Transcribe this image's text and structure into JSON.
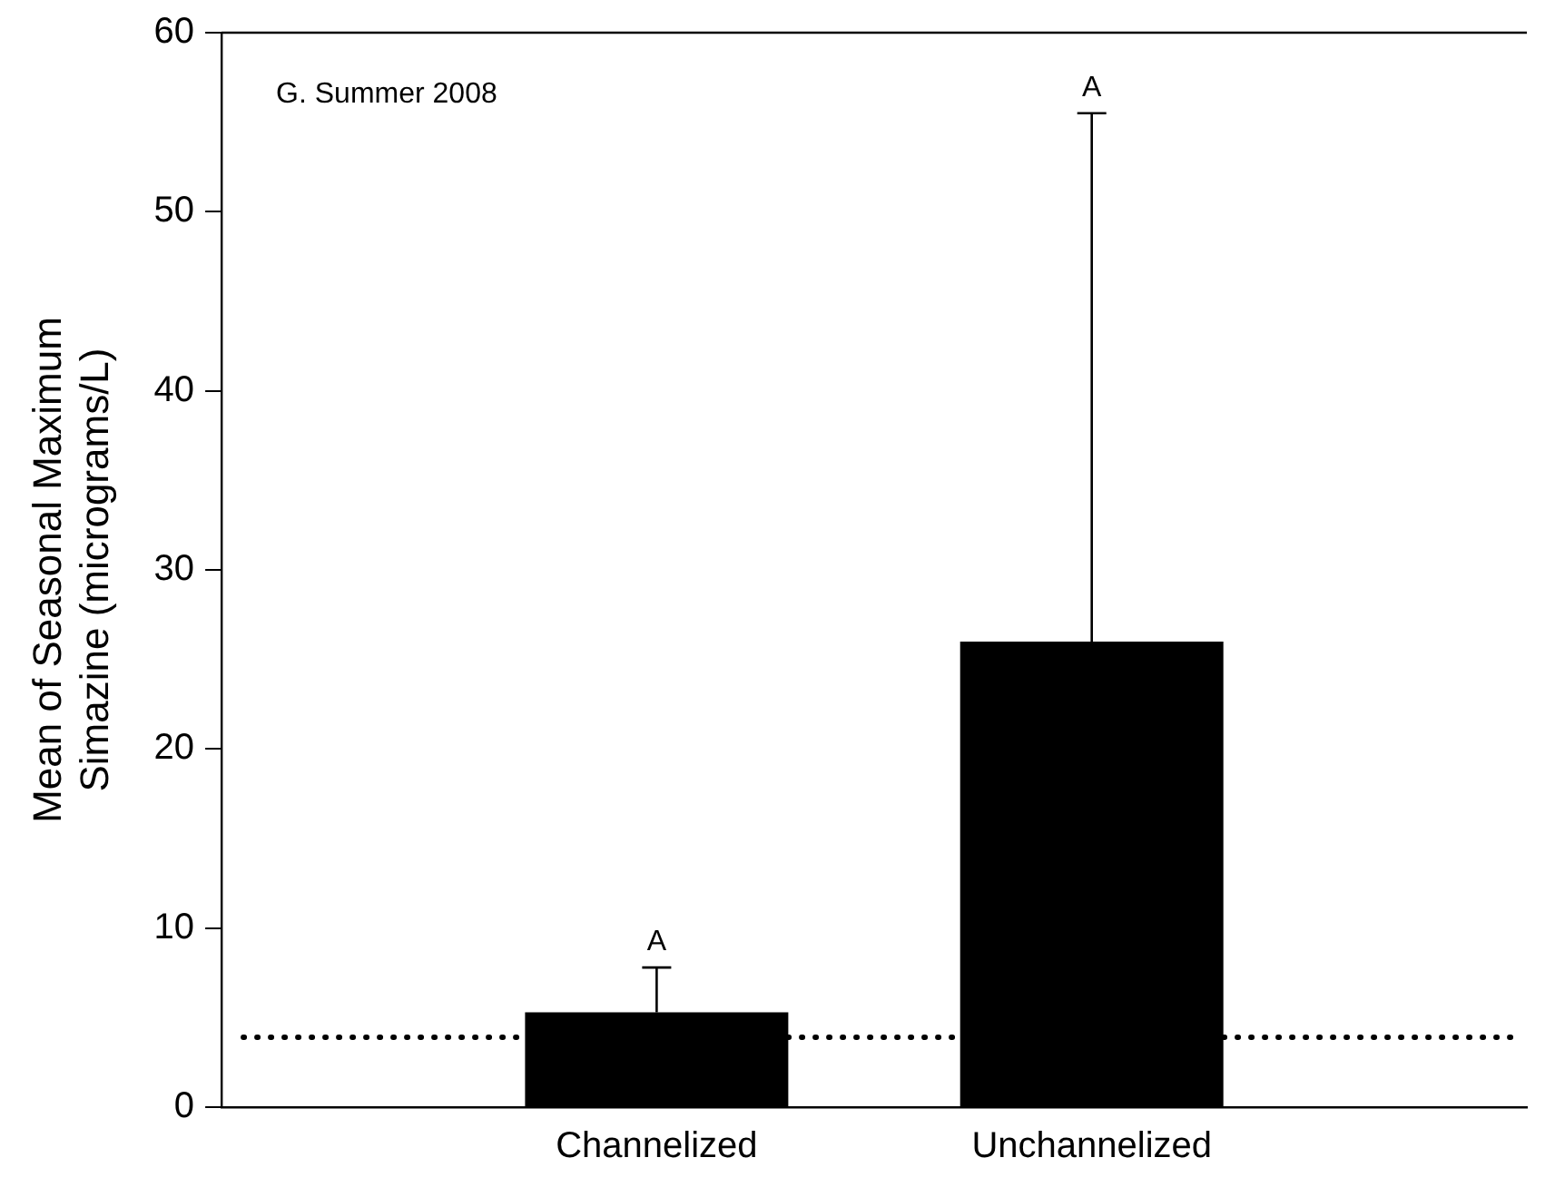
{
  "chart_data": {
    "type": "bar",
    "ylabel": "Mean of Seasonal Maximum\nSimazine (micrograms/L)",
    "categories": [
      "Channelized",
      "Unchannelized"
    ],
    "values": [
      5.3,
      26.0
    ],
    "color": "#000000",
    "errors": [
      [
        5.3,
        7.8
      ],
      [
        26.0,
        55.5
      ]
    ],
    "ylim": [
      0,
      60
    ],
    "yticks": [
      0,
      10,
      20,
      30,
      40,
      50,
      60
    ],
    "grid": false,
    "legend": false,
    "ref_lines": [
      {
        "axis": "y",
        "value": 3.9,
        "color": "#000000",
        "line_style": "dotted"
      }
    ],
    "annotations": [
      "G. Summer 2008",
      {
        "text": "A",
        "x": "Channelized",
        "y": 7.8
      },
      {
        "text": "A",
        "x": "Unchannelized",
        "y": 55.5
      }
    ]
  }
}
